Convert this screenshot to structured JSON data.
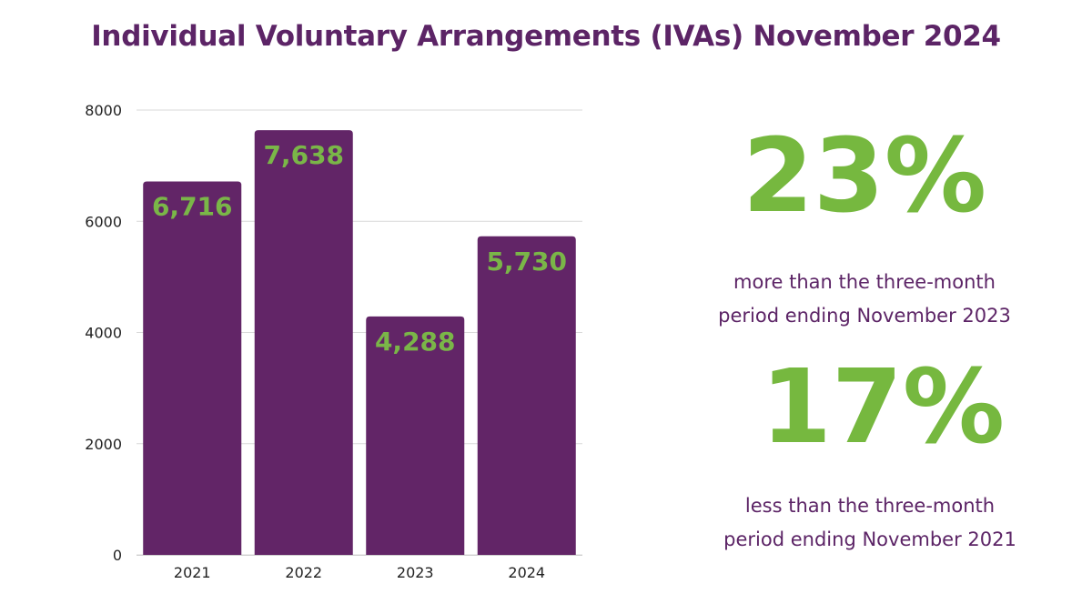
{
  "title": "Individual Voluntary Arrangements (IVAs) November 2024",
  "colors": {
    "bar": "#622567",
    "label": "#7ab648",
    "title": "#5c2466",
    "grid": "#d9d9d9"
  },
  "chart_data": {
    "type": "bar",
    "title": "",
    "categories": [
      "2021",
      "2022",
      "2023",
      "2024"
    ],
    "values": [
      6716,
      7638,
      4288,
      5730
    ],
    "value_labels": [
      "6,716",
      "7,638",
      "4,288",
      "5,730"
    ],
    "ylim": [
      0,
      8000
    ],
    "yticks": [
      0,
      2000,
      4000,
      6000,
      8000
    ],
    "ytick_labels": [
      "0",
      "2000",
      "4000",
      "6000",
      "8000"
    ],
    "xlabel": "",
    "ylabel": "",
    "grid": true
  },
  "stats": [
    {
      "value": "23%",
      "caption_line1": "more than the three-month",
      "caption_line2": "period ending November 2023"
    },
    {
      "value": "17%",
      "caption_line1": "less than the three-month",
      "caption_line2": "period ending November 2021"
    }
  ]
}
